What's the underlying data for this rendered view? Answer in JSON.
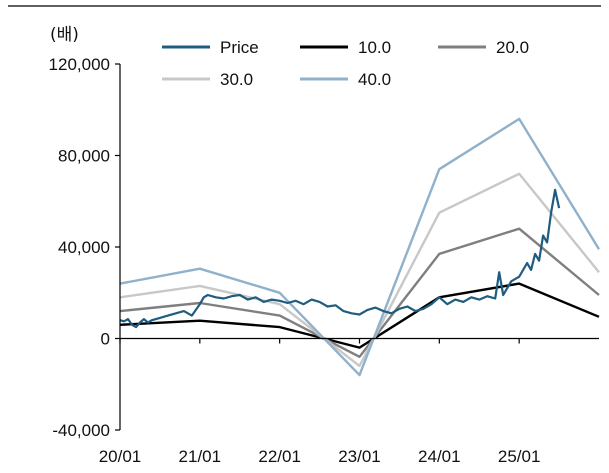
{
  "chart_data": {
    "type": "line",
    "unit_label": "(배)",
    "ylim": [
      -40000,
      120000
    ],
    "y_ticks": [
      -40000,
      0,
      40000,
      80000,
      120000
    ],
    "y_tick_labels": [
      "-40,000",
      "0",
      "40,000",
      "80,000",
      "120,000"
    ],
    "x_tick_labels": [
      "20/01",
      "21/01",
      "22/01",
      "23/01",
      "24/01",
      "25/01"
    ],
    "x_tick_positions": [
      0,
      1,
      2,
      3,
      4,
      5
    ],
    "xlim": [
      0,
      6
    ],
    "grid": false,
    "legend_placement": "top",
    "series": [
      {
        "name": "Price",
        "color": "#1f5c80",
        "x": [
          0,
          0.05,
          0.1,
          0.15,
          0.2,
          0.25,
          0.3,
          0.35,
          0.4,
          0.5,
          0.6,
          0.7,
          0.8,
          0.9,
          1.0,
          1.05,
          1.1,
          1.2,
          1.3,
          1.4,
          1.5,
          1.6,
          1.7,
          1.8,
          1.9,
          2.0,
          2.1,
          2.2,
          2.3,
          2.4,
          2.5,
          2.6,
          2.7,
          2.8,
          2.9,
          3.0,
          3.1,
          3.2,
          3.3,
          3.4,
          3.5,
          3.6,
          3.7,
          3.8,
          3.9,
          4.0,
          4.1,
          4.2,
          4.3,
          4.4,
          4.5,
          4.6,
          4.7,
          4.75,
          4.8,
          4.85,
          4.9,
          5.0,
          5.1,
          5.15,
          5.2,
          5.25,
          5.3,
          5.35,
          5.4,
          5.45,
          5.5
        ],
        "values": [
          8000,
          7500,
          8500,
          6000,
          5000,
          7000,
          8500,
          7000,
          8000,
          9000,
          10000,
          11000,
          12000,
          10000,
          15000,
          18000,
          19000,
          18000,
          17500,
          18500,
          19000,
          17000,
          18000,
          16000,
          17000,
          16500,
          15500,
          16500,
          15000,
          17000,
          16000,
          14000,
          14500,
          12000,
          11000,
          10500,
          12500,
          13500,
          12000,
          11000,
          13000,
          14000,
          12000,
          13000,
          15000,
          18000,
          15000,
          17000,
          16000,
          18000,
          17000,
          18500,
          17500,
          29000,
          19000,
          22000,
          25000,
          27000,
          33000,
          30000,
          37000,
          34000,
          45000,
          42000,
          55000,
          65000,
          57000
        ]
      },
      {
        "name": "10.0",
        "color": "#000000",
        "x": [
          0,
          1,
          2,
          3,
          4,
          5,
          6
        ],
        "values": [
          6000,
          7800,
          5000,
          -4000,
          18000,
          24000,
          9500
        ]
      },
      {
        "name": "20.0",
        "color": "#7f7f7f",
        "x": [
          0,
          1,
          2,
          3,
          4,
          5,
          6
        ],
        "values": [
          12000,
          15500,
          10000,
          -8000,
          37000,
          48000,
          19000
        ]
      },
      {
        "name": "30.0",
        "color": "#c8c8c8",
        "x": [
          0,
          1,
          2,
          3,
          4,
          5,
          6
        ],
        "values": [
          18000,
          23000,
          15000,
          -12000,
          55000,
          72000,
          29000
        ]
      },
      {
        "name": "40.0",
        "color": "#8fb1cc",
        "x": [
          0,
          1,
          2,
          3,
          4,
          5,
          6
        ],
        "values": [
          24000,
          30500,
          20000,
          -16000,
          74000,
          96000,
          39000
        ]
      }
    ]
  }
}
